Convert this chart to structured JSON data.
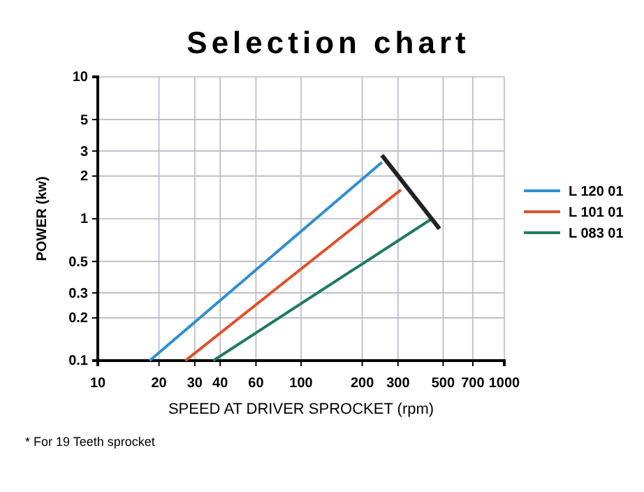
{
  "chart_data": {
    "type": "line",
    "title": "Selection chart",
    "xlabel": "SPEED AT DRIVER SPROCKET (rpm)",
    "ylabel": "POWER (kw)",
    "log": "xy",
    "xlim": [
      10,
      1000
    ],
    "xticks": [
      10,
      20,
      30,
      40,
      60,
      100,
      200,
      300,
      500,
      700,
      1000
    ],
    "ylim": [
      0.1,
      10
    ],
    "yticks": [
      0.1,
      0.2,
      0.3,
      0.5,
      1,
      2,
      3,
      5,
      10
    ],
    "grid": true,
    "legend": "right",
    "marker": "none",
    "line_style": "solid",
    "annotations": [
      "* For 19 Teeth sprocket"
    ],
    "series": [
      {
        "name": "L 120 01",
        "color": "#2f8fd0",
        "x": [
          18,
          250
        ],
        "values": [
          0.1,
          2.5
        ]
      },
      {
        "name": "L 101 01",
        "color": "#e0502a",
        "x": [
          27,
          310
        ],
        "values": [
          0.1,
          1.6
        ]
      },
      {
        "name": "L 083 01",
        "color": "#1f7a62",
        "x": [
          37,
          440
        ],
        "values": [
          0.1,
          1.0
        ]
      },
      {
        "color": "#222222",
        "x": [
          250,
          480
        ],
        "values": [
          2.8,
          0.85
        ]
      }
    ]
  }
}
